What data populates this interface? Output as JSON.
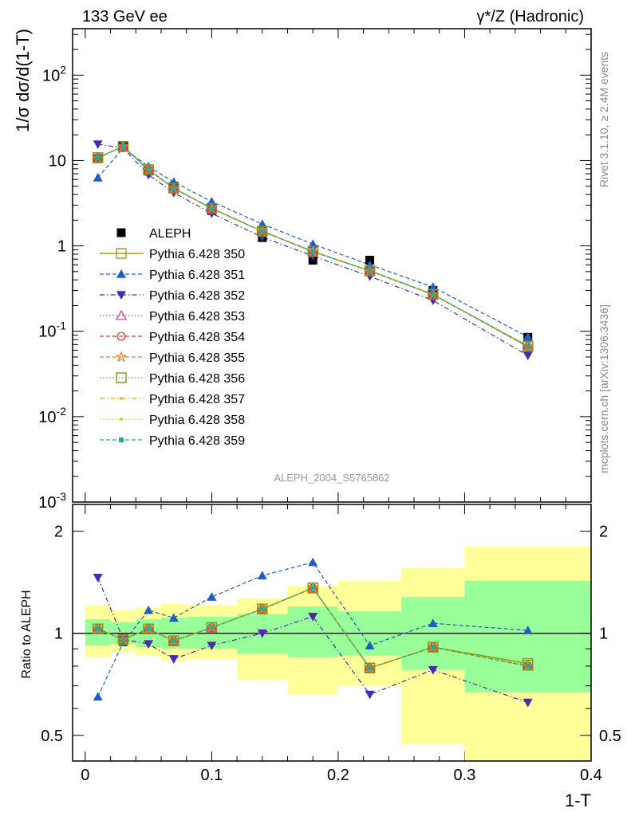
{
  "header": {
    "left_title": "133 GeV ee",
    "right_title": "γ*/Z (Hadronic)"
  },
  "side_text": {
    "rivet": "Rivet 3.1.10, ≥ 2.4M events",
    "mcplots": "mcplots.cern.ch [arXiv:1306.3436]"
  },
  "analysis_label": "ALEPH_2004_S5765862",
  "colors": {
    "band_inner": "#99ff99",
    "band_outer": "#ffff99",
    "data": "#000000"
  },
  "chart_data": [
    {
      "type": "line",
      "panel": "main",
      "ylabel": "1/σ  dσ/d(1-T)",
      "yscale": "log",
      "ylim": [
        0.001,
        350
      ],
      "xlim": [
        -0.01,
        0.4
      ],
      "y_ticks": [
        {
          "value": 100,
          "label": "10^2"
        },
        {
          "value": 10,
          "label": "10"
        },
        {
          "value": 1,
          "label": "1"
        },
        {
          "value": 0.1,
          "label": "10^-1"
        },
        {
          "value": 0.01,
          "label": "10^-2"
        },
        {
          "value": 0.001,
          "label": "10^-3"
        }
      ],
      "legend_position": "middle-left",
      "data_series": {
        "name": "ALEPH",
        "x": [
          0.01,
          0.03,
          0.05,
          0.07,
          0.1,
          0.14,
          0.18,
          0.225,
          0.275,
          0.35
        ],
        "y": [
          10.5,
          14.8,
          7.5,
          5.0,
          2.6,
          1.25,
          0.68,
          0.68,
          0.3,
          0.085
        ]
      },
      "series": [
        {
          "name": "Pythia 6.428 350",
          "color": "#a09a2a",
          "dash": "",
          "marker": "square-open",
          "y": [
            10.8,
            14.6,
            7.8,
            4.75,
            2.75,
            1.48,
            0.86,
            0.51,
            0.27,
            0.067
          ]
        },
        {
          "name": "Pythia 6.428 351",
          "color": "#1f5fbf",
          "dash": "5,3",
          "marker": "triangle-up",
          "y": [
            6.3,
            14.0,
            8.5,
            5.6,
            3.3,
            1.8,
            1.05,
            0.6,
            0.33,
            0.086
          ]
        },
        {
          "name": "Pythia 6.428 352",
          "color": "#4a2bb0",
          "dash": "6,3,1.5,3",
          "marker": "triangle-down",
          "y": [
            15.5,
            14.0,
            6.8,
            4.2,
            2.4,
            1.27,
            0.76,
            0.44,
            0.23,
            0.052
          ]
        },
        {
          "name": "Pythia 6.428 353",
          "color": "#c03aa0",
          "dash": "1.5,2.5",
          "marker": "triangle-open",
          "y": [
            10.8,
            14.6,
            7.8,
            4.75,
            2.75,
            1.48,
            0.86,
            0.51,
            0.27,
            0.066
          ]
        },
        {
          "name": "Pythia 6.428 354",
          "color": "#e03030",
          "dash": "5,3",
          "marker": "circle-open",
          "y": [
            10.8,
            14.6,
            7.8,
            4.75,
            2.75,
            1.48,
            0.86,
            0.51,
            0.27,
            0.066
          ]
        },
        {
          "name": "Pythia 6.428 355",
          "color": "#f07a20",
          "dash": "5,3",
          "marker": "star-open",
          "y": [
            10.8,
            14.6,
            7.8,
            4.75,
            2.75,
            1.48,
            0.86,
            0.51,
            0.27,
            0.066
          ]
        },
        {
          "name": "Pythia 6.428 356",
          "color": "#7a9a1a",
          "dash": "1.5,2.5",
          "marker": "square-open",
          "y": [
            10.8,
            14.6,
            7.8,
            4.75,
            2.75,
            1.48,
            0.86,
            0.51,
            0.27,
            0.066
          ]
        },
        {
          "name": "Pythia 6.428 357",
          "color": "#e0b000",
          "dash": "6,3,1.5,3",
          "marker": "dot",
          "y": [
            10.8,
            14.6,
            7.8,
            4.75,
            2.75,
            1.48,
            0.86,
            0.51,
            0.27,
            0.066
          ]
        },
        {
          "name": "Pythia 6.428 358",
          "color": "#c8c800",
          "dash": "1.5,2.5",
          "marker": "dot",
          "y": [
            10.8,
            14.6,
            7.8,
            4.75,
            2.75,
            1.48,
            0.86,
            0.51,
            0.27,
            0.066
          ]
        },
        {
          "name": "Pythia 6.428 359",
          "color": "#20b090",
          "dash": "5,3",
          "marker": "square-filled",
          "y": [
            10.8,
            14.6,
            7.8,
            4.75,
            2.75,
            1.48,
            0.86,
            0.51,
            0.27,
            0.066
          ]
        }
      ]
    },
    {
      "type": "line",
      "panel": "ratio",
      "ylabel": "Ratio to ALEPH",
      "yscale": "log",
      "ylim": [
        0.42,
        2.4
      ],
      "xlim": [
        -0.01,
        0.4
      ],
      "xlabel": "1-T",
      "y_ticks": [
        {
          "value": 0.5,
          "label": "0.5"
        },
        {
          "value": 1,
          "label": "1"
        },
        {
          "value": 2,
          "label": "2"
        }
      ],
      "x_ticks": [
        {
          "value": 0,
          "label": "0"
        },
        {
          "value": 0.1,
          "label": "0.1"
        },
        {
          "value": 0.2,
          "label": "0.2"
        },
        {
          "value": 0.3,
          "label": "0.3"
        },
        {
          "value": 0.4,
          "label": "0.4"
        }
      ],
      "bins": [
        {
          "lo": 0.0,
          "hi": 0.02,
          "inner": [
            0.92,
            1.1
          ],
          "outer": [
            0.85,
            1.21
          ]
        },
        {
          "lo": 0.02,
          "hi": 0.04,
          "inner": [
            0.93,
            1.08
          ],
          "outer": [
            0.88,
            1.17
          ]
        },
        {
          "lo": 0.04,
          "hi": 0.06,
          "inner": [
            0.91,
            1.1
          ],
          "outer": [
            0.86,
            1.19
          ]
        },
        {
          "lo": 0.06,
          "hi": 0.08,
          "inner": [
            0.9,
            1.11
          ],
          "outer": [
            0.83,
            1.22
          ]
        },
        {
          "lo": 0.08,
          "hi": 0.12,
          "inner": [
            0.9,
            1.12
          ],
          "outer": [
            0.84,
            1.21
          ]
        },
        {
          "lo": 0.12,
          "hi": 0.16,
          "inner": [
            0.87,
            1.14
          ],
          "outer": [
            0.73,
            1.27
          ]
        },
        {
          "lo": 0.16,
          "hi": 0.2,
          "inner": [
            0.85,
            1.2
          ],
          "outer": [
            0.66,
            1.38
          ]
        },
        {
          "lo": 0.2,
          "hi": 0.25,
          "inner": [
            0.86,
            1.16
          ],
          "outer": [
            0.7,
            1.43
          ]
        },
        {
          "lo": 0.25,
          "hi": 0.3,
          "inner": [
            0.78,
            1.28
          ],
          "outer": [
            0.47,
            1.56
          ]
        },
        {
          "lo": 0.3,
          "hi": 0.4,
          "inner": [
            0.67,
            1.43
          ],
          "outer": [
            0.4,
            1.8
          ]
        }
      ],
      "x": [
        0.01,
        0.03,
        0.05,
        0.07,
        0.1,
        0.14,
        0.18,
        0.225,
        0.275,
        0.35
      ],
      "series": [
        {
          "name": "Pythia 6.428 350",
          "color": "#a09a2a",
          "dash": "",
          "marker": "square-open",
          "y": [
            1.03,
            0.96,
            1.03,
            0.95,
            1.04,
            1.18,
            1.36,
            0.79,
            0.91,
            0.815
          ]
        },
        {
          "name": "Pythia 6.428 351",
          "color": "#1f5fbf",
          "dash": "5,3",
          "marker": "triangle-up",
          "y": [
            0.65,
            0.94,
            1.17,
            1.11,
            1.28,
            1.48,
            1.62,
            0.92,
            1.07,
            1.02
          ]
        },
        {
          "name": "Pythia 6.428 352",
          "color": "#4a2bb0",
          "dash": "6,3,1.5,3",
          "marker": "triangle-down",
          "y": [
            1.46,
            0.96,
            0.93,
            0.84,
            0.92,
            1.0,
            1.12,
            0.66,
            0.78,
            0.625
          ]
        },
        {
          "name": "Pythia 6.428 353",
          "color": "#c03aa0",
          "dash": "1.5,2.5",
          "marker": "triangle-open",
          "y": [
            1.03,
            0.96,
            1.03,
            0.95,
            1.04,
            1.18,
            1.36,
            0.79,
            0.91,
            0.8
          ]
        },
        {
          "name": "Pythia 6.428 354",
          "color": "#e03030",
          "dash": "5,3",
          "marker": "circle-open",
          "y": [
            1.03,
            0.96,
            1.03,
            0.95,
            1.04,
            1.18,
            1.36,
            0.79,
            0.91,
            0.8
          ]
        },
        {
          "name": "Pythia 6.428 355",
          "color": "#f07a20",
          "dash": "5,3",
          "marker": "star-open",
          "y": [
            1.03,
            0.96,
            1.03,
            0.95,
            1.04,
            1.18,
            1.36,
            0.79,
            0.91,
            0.8
          ]
        },
        {
          "name": "Pythia 6.428 356",
          "color": "#7a9a1a",
          "dash": "1.5,2.5",
          "marker": "square-open",
          "y": [
            1.03,
            0.96,
            1.03,
            0.95,
            1.04,
            1.18,
            1.36,
            0.79,
            0.91,
            0.805
          ]
        },
        {
          "name": "Pythia 6.428 357",
          "color": "#e0b000",
          "dash": "6,3,1.5,3",
          "marker": "dot",
          "y": [
            1.03,
            0.96,
            1.03,
            0.95,
            1.04,
            1.18,
            1.36,
            0.79,
            0.91,
            0.8
          ]
        },
        {
          "name": "Pythia 6.428 358",
          "color": "#c8c800",
          "dash": "1.5,2.5",
          "marker": "dot",
          "y": [
            1.03,
            0.96,
            1.03,
            0.95,
            1.04,
            1.18,
            1.36,
            0.79,
            0.91,
            0.8
          ]
        },
        {
          "name": "Pythia 6.428 359",
          "color": "#20b090",
          "dash": "5,3",
          "marker": "square-filled",
          "y": [
            1.03,
            0.96,
            1.03,
            0.95,
            1.04,
            1.18,
            1.36,
            0.79,
            0.91,
            0.8
          ]
        }
      ]
    }
  ]
}
